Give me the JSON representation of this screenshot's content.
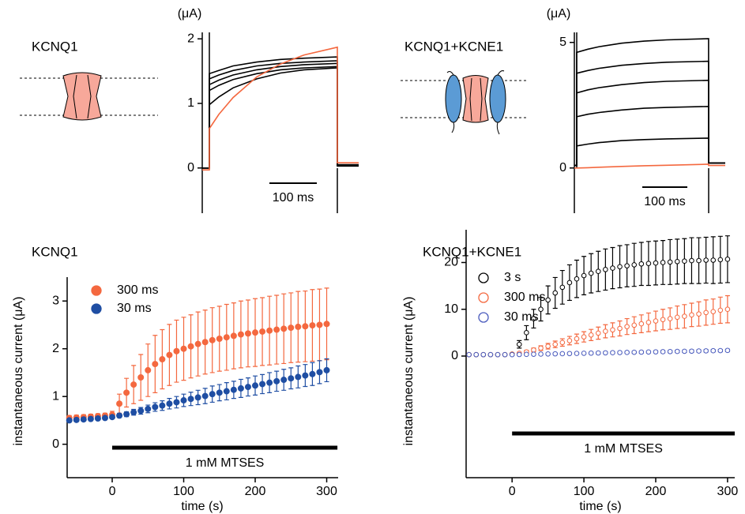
{
  "chart_data": [
    {
      "type": "line",
      "title": "KCNQ1",
      "y_label": "(μA)",
      "x": [
        -15,
        0,
        0,
        20,
        50,
        100,
        150,
        200,
        270,
        270,
        315
      ],
      "xlim": [
        -15,
        315
      ],
      "ylim": [
        -0.7,
        2.1
      ],
      "yticks": [
        0,
        1,
        2
      ],
      "scale_bar": {
        "value": 100,
        "label": "100 ms"
      },
      "series": [
        {
          "color": "#000000",
          "values": [
            0,
            0,
            1.46,
            1.51,
            1.58,
            1.64,
            1.68,
            1.7,
            1.72,
            0.05,
            0.05
          ]
        },
        {
          "color": "#000000",
          "values": [
            0,
            0,
            1.38,
            1.44,
            1.51,
            1.58,
            1.62,
            1.64,
            1.66,
            0.05,
            0.05
          ]
        },
        {
          "color": "#000000",
          "values": [
            0,
            0,
            1.29,
            1.36,
            1.44,
            1.52,
            1.57,
            1.6,
            1.62,
            0.04,
            0.04
          ]
        },
        {
          "color": "#000000",
          "values": [
            0,
            0,
            1.2,
            1.28,
            1.37,
            1.46,
            1.52,
            1.55,
            1.57,
            0.04,
            0.04
          ]
        },
        {
          "color": "#000000",
          "values": [
            0,
            0,
            0.98,
            1.1,
            1.24,
            1.38,
            1.47,
            1.52,
            1.55,
            0.03,
            0.03
          ]
        },
        {
          "color": "#f4683f",
          "values": [
            -0.03,
            -0.03,
            0.61,
            0.83,
            1.09,
            1.41,
            1.61,
            1.75,
            1.87,
            0.08,
            0.08
          ]
        }
      ]
    },
    {
      "type": "line",
      "title": "KCNQ1+KCNE1",
      "y_label": "(μA)",
      "x": [
        -5,
        0,
        0,
        25,
        50,
        100,
        150,
        200,
        293,
        293,
        330
      ],
      "xlim": [
        -5,
        330
      ],
      "ylim": [
        -1.8,
        5.4
      ],
      "yticks": [
        0,
        5
      ],
      "scale_bar": {
        "value": 100,
        "label": "100 ms"
      },
      "series": [
        {
          "color": "#000000",
          "values": [
            0.1,
            0.1,
            4.6,
            4.73,
            4.83,
            4.97,
            5.05,
            5.1,
            5.15,
            0.2,
            0.2
          ]
        },
        {
          "color": "#000000",
          "values": [
            0.1,
            0.1,
            3.77,
            3.88,
            3.97,
            4.09,
            4.16,
            4.21,
            4.25,
            0.2,
            0.2
          ]
        },
        {
          "color": "#000000",
          "values": [
            0.1,
            0.1,
            2.99,
            3.11,
            3.2,
            3.32,
            3.4,
            3.45,
            3.49,
            0.2,
            0.2
          ]
        },
        {
          "color": "#000000",
          "values": [
            0.1,
            0.1,
            2.04,
            2.14,
            2.21,
            2.31,
            2.38,
            2.41,
            2.45,
            0.2,
            0.2
          ]
        },
        {
          "color": "#000000",
          "values": [
            0.1,
            0.1,
            0.88,
            0.95,
            1.01,
            1.09,
            1.13,
            1.16,
            1.19,
            0.2,
            0.2
          ]
        },
        {
          "color": "#f4683f",
          "values": [
            0,
            0,
            0,
            0.01,
            0.03,
            0.06,
            0.09,
            0.11,
            0.15,
            0.1,
            0.1
          ]
        }
      ]
    },
    {
      "type": "scatter",
      "title": "KCNQ1",
      "x_label": "time (s)",
      "y_label": "instantaneous current (μA)",
      "marker": "filled",
      "x": [
        -60,
        -50,
        -40,
        -30,
        -20,
        -10,
        0,
        10,
        20,
        30,
        40,
        50,
        60,
        70,
        80,
        90,
        100,
        110,
        120,
        130,
        140,
        150,
        160,
        170,
        180,
        190,
        200,
        210,
        220,
        230,
        240,
        250,
        260,
        270,
        280,
        290,
        300
      ],
      "xlim": [
        -63,
        316
      ],
      "xticks": [
        0,
        100,
        200,
        300
      ],
      "ylim": [
        -0.7,
        3.5
      ],
      "yticks": [
        0,
        1,
        2,
        3
      ],
      "treatment_bar": {
        "label": "1 mM MTSES",
        "start": 0,
        "end": 315
      },
      "series": [
        {
          "name": "300 ms",
          "color": "#f4683f",
          "values": [
            0.55,
            0.56,
            0.57,
            0.58,
            0.59,
            0.6,
            0.62,
            0.85,
            1.08,
            1.25,
            1.4,
            1.55,
            1.68,
            1.78,
            1.87,
            1.95,
            2.0,
            2.05,
            2.1,
            2.14,
            2.18,
            2.21,
            2.24,
            2.27,
            2.3,
            2.32,
            2.34,
            2.36,
            2.38,
            2.4,
            2.42,
            2.44,
            2.46,
            2.47,
            2.49,
            2.5,
            2.52
          ],
          "errors": [
            0.05,
            0.05,
            0.05,
            0.05,
            0.05,
            0.05,
            0.07,
            0.2,
            0.3,
            0.4,
            0.48,
            0.55,
            0.6,
            0.62,
            0.64,
            0.65,
            0.66,
            0.66,
            0.67,
            0.67,
            0.68,
            0.68,
            0.69,
            0.69,
            0.7,
            0.7,
            0.71,
            0.71,
            0.72,
            0.72,
            0.73,
            0.73,
            0.74,
            0.74,
            0.75,
            0.75,
            0.75
          ]
        },
        {
          "name": "30 ms",
          "color": "#1f4ea3",
          "values": [
            0.5,
            0.51,
            0.52,
            0.53,
            0.54,
            0.55,
            0.57,
            0.6,
            0.63,
            0.67,
            0.7,
            0.74,
            0.78,
            0.81,
            0.85,
            0.88,
            0.92,
            0.95,
            0.98,
            1.01,
            1.05,
            1.08,
            1.11,
            1.14,
            1.17,
            1.2,
            1.23,
            1.26,
            1.29,
            1.32,
            1.35,
            1.38,
            1.41,
            1.44,
            1.47,
            1.51,
            1.55
          ],
          "errors": [
            0.03,
            0.03,
            0.03,
            0.03,
            0.03,
            0.03,
            0.03,
            0.04,
            0.05,
            0.06,
            0.07,
            0.08,
            0.09,
            0.1,
            0.11,
            0.12,
            0.13,
            0.14,
            0.15,
            0.16,
            0.17,
            0.17,
            0.18,
            0.18,
            0.19,
            0.19,
            0.2,
            0.2,
            0.21,
            0.21,
            0.22,
            0.22,
            0.23,
            0.23,
            0.24,
            0.24,
            0.24
          ]
        }
      ]
    },
    {
      "type": "scatter",
      "title": "KCNQ1+KCNE1",
      "x_label": "time (s)",
      "y_label": "instantaneous current (μA)",
      "marker": "open",
      "x": [
        -60,
        -50,
        -40,
        -30,
        -20,
        -10,
        0,
        10,
        20,
        30,
        40,
        50,
        60,
        70,
        80,
        90,
        100,
        110,
        120,
        130,
        140,
        150,
        160,
        170,
        180,
        190,
        200,
        210,
        220,
        230,
        240,
        250,
        260,
        270,
        280,
        290,
        300
      ],
      "xlim": [
        -64,
        310
      ],
      "xticks": [
        0,
        100,
        200,
        300
      ],
      "ylim": [
        -26,
        27
      ],
      "yticks": [
        0,
        10,
        20
      ],
      "treatment_bar": {
        "label": "1 mM MTSES",
        "start": 0,
        "end": 310
      },
      "series": [
        {
          "name": "3 s",
          "color": "#000000",
          "values": [
            0.3,
            0.3,
            0.3,
            0.3,
            0.3,
            0.3,
            0.4,
            2.5,
            5,
            8,
            10,
            12,
            13.5,
            14.7,
            15.7,
            16.5,
            17.2,
            17.7,
            18.1,
            18.5,
            18.8,
            19.1,
            19.3,
            19.5,
            19.7,
            19.8,
            19.9,
            20,
            20.1,
            20.2,
            20.3,
            20.4,
            20.4,
            20.5,
            20.5,
            20.6,
            20.7
          ],
          "errors": [
            0.1,
            0.1,
            0.1,
            0.1,
            0.1,
            0.1,
            0.2,
            0.8,
            1.5,
            2,
            2.5,
            3,
            3.3,
            3.6,
            3.8,
            4,
            4.1,
            4.2,
            4.3,
            4.4,
            4.4,
            4.5,
            4.5,
            4.6,
            4.6,
            4.7,
            4.7,
            4.7,
            4.8,
            4.8,
            4.8,
            4.9,
            4.9,
            4.9,
            5,
            5,
            5
          ]
        },
        {
          "name": "300 ms",
          "color": "#f4683f",
          "values": [
            0.3,
            0.3,
            0.3,
            0.3,
            0.3,
            0.3,
            0.4,
            0.6,
            0.9,
            1.3,
            1.7,
            2.1,
            2.5,
            2.9,
            3.3,
            3.7,
            4.1,
            4.5,
            4.9,
            5.3,
            5.6,
            5.9,
            6.3,
            6.6,
            6.9,
            7.2,
            7.5,
            7.8,
            8,
            8.3,
            8.5,
            8.8,
            9,
            9.3,
            9.5,
            9.8,
            10
          ],
          "errors": [
            0.1,
            0.1,
            0.1,
            0.1,
            0.1,
            0.1,
            0.1,
            0.2,
            0.3,
            0.4,
            0.5,
            0.6,
            0.7,
            0.8,
            0.9,
            1,
            1.1,
            1.2,
            1.3,
            1.4,
            1.5,
            1.6,
            1.7,
            1.8,
            1.9,
            2,
            2.1,
            2.2,
            2.3,
            2.4,
            2.5,
            2.5,
            2.6,
            2.7,
            2.7,
            2.8,
            2.9
          ]
        },
        {
          "name": "30 ms",
          "color": "#4a5bbd",
          "values": [
            0.3,
            0.3,
            0.3,
            0.3,
            0.3,
            0.3,
            0.3,
            0.33,
            0.36,
            0.39,
            0.42,
            0.45,
            0.48,
            0.51,
            0.54,
            0.57,
            0.6,
            0.63,
            0.66,
            0.69,
            0.72,
            0.75,
            0.78,
            0.81,
            0.84,
            0.87,
            0.9,
            0.93,
            0.96,
            0.99,
            1.02,
            1.05,
            1.08,
            1.11,
            1.14,
            1.17,
            1.2
          ],
          "errors": [
            0.1,
            0.1,
            0.1,
            0.1,
            0.1,
            0.1,
            0.1,
            0.15,
            0.15,
            0.15,
            0.15,
            0.15,
            0.15,
            0.15,
            0.15,
            0.15,
            0.15,
            0.2,
            0.2,
            0.2,
            0.2,
            0.2,
            0.2,
            0.2,
            0.2,
            0.2,
            0.2,
            0.25,
            0.25,
            0.25,
            0.25,
            0.25,
            0.25,
            0.25,
            0.25,
            0.25,
            0.25
          ]
        }
      ]
    }
  ]
}
